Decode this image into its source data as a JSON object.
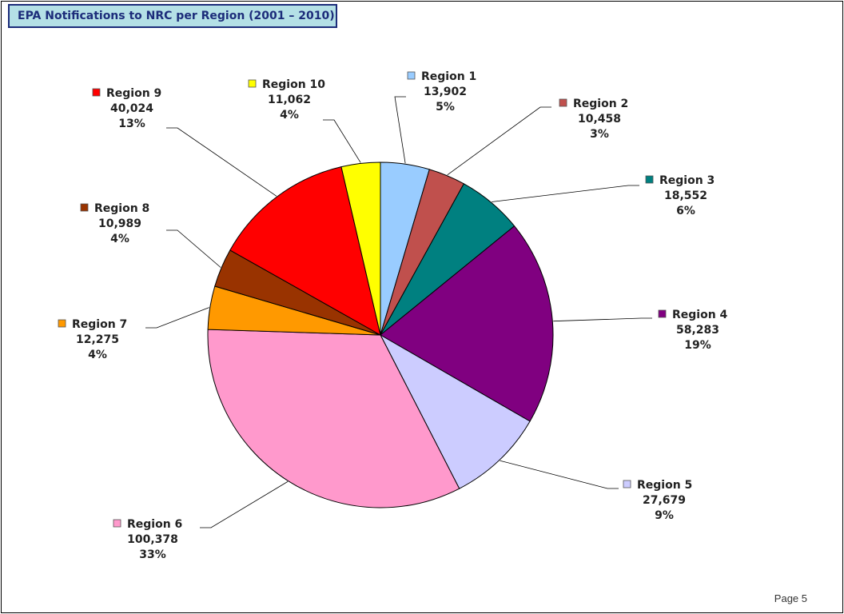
{
  "page": {
    "title": "EPA Notifications to NRC per Region (2001 – 2010)",
    "page_number": "Page 5"
  },
  "chart_data": {
    "type": "pie",
    "title": "EPA Notifications to NRC per Region (2001 – 2010)",
    "start_angle_deg": 0,
    "direction": "clockwise",
    "legend": "none (callout labels)",
    "slices": [
      {
        "name": "Region 1",
        "value": 13902,
        "value_label": "13,902",
        "percent_label": "5%",
        "color": "#99ccff"
      },
      {
        "name": "Region 2",
        "value": 10458,
        "value_label": "10,458",
        "percent_label": "3%",
        "color": "#c0504d"
      },
      {
        "name": "Region 3",
        "value": 18552,
        "value_label": "18,552",
        "percent_label": "6%",
        "color": "#008080"
      },
      {
        "name": "Region 4",
        "value": 58283,
        "value_label": "58,283",
        "percent_label": "19%",
        "color": "#800080"
      },
      {
        "name": "Region 5",
        "value": 27679,
        "value_label": "27,679",
        "percent_label": "9%",
        "color": "#ccccff"
      },
      {
        "name": "Region 6",
        "value": 100378,
        "value_label": "100,378",
        "percent_label": "33%",
        "color": "#ff99cc"
      },
      {
        "name": "Region 7",
        "value": 12275,
        "value_label": "12,275",
        "percent_label": "4%",
        "color": "#ff9900"
      },
      {
        "name": "Region 8",
        "value": 10989,
        "value_label": "10,989",
        "percent_label": "4%",
        "color": "#993300"
      },
      {
        "name": "Region 9",
        "value": 40024,
        "value_label": "40,024",
        "percent_label": "13%",
        "color": "#ff0000"
      },
      {
        "name": "Region 10",
        "value": 11062,
        "value_label": "11,062",
        "percent_label": "4%",
        "color": "#ffff00"
      }
    ]
  }
}
